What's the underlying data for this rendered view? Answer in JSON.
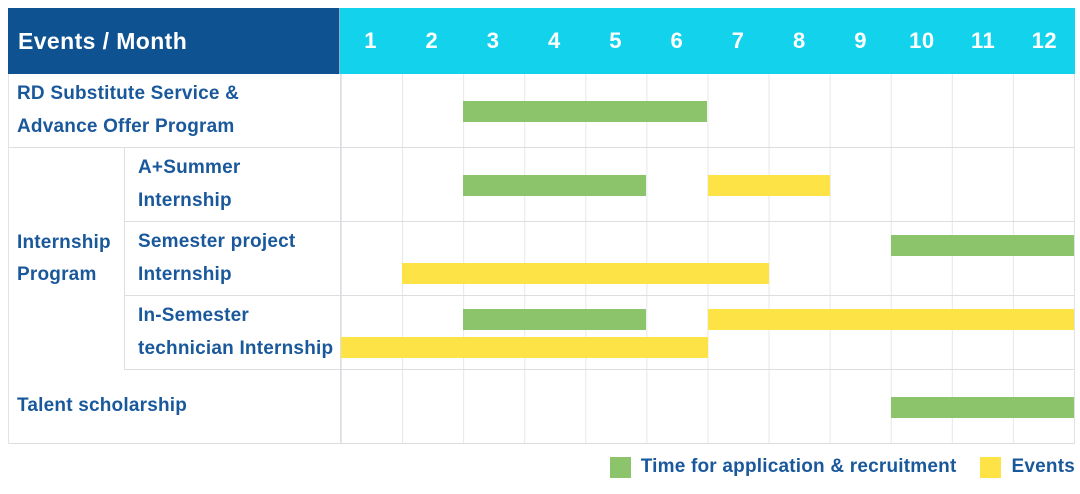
{
  "colors": {
    "header_bg": "#0E5291",
    "month_header_bg": "#13D2EC",
    "application_bar": "#8BC46B",
    "event_bar": "#FDE345",
    "label_text": "#1A589C",
    "grid_line": "#e6e6ea"
  },
  "chart_data": {
    "type": "table",
    "subtype": "gantt-schedule",
    "title": "Events / Month",
    "x_unit": "month",
    "x_range": [
      1,
      12
    ],
    "months": [
      "1",
      "2",
      "3",
      "4",
      "5",
      "6",
      "7",
      "8",
      "9",
      "10",
      "11",
      "12"
    ],
    "legend": [
      {
        "id": "application",
        "name": "Time for application & recruitment",
        "color": "#8BC46B"
      },
      {
        "id": "event",
        "name": "Events",
        "color": "#FDE345"
      }
    ],
    "sections": [
      {
        "group_lines": null,
        "rows": [
          {
            "label_lines": [
              "RD Substitute Service &",
              "Advance Offer Program"
            ],
            "tracks": [
              [
                {
                  "kind": "application",
                  "start_month": 3,
                  "end_month": 6
                }
              ]
            ]
          }
        ]
      },
      {
        "group_lines": [
          "Internship",
          "Program"
        ],
        "rows": [
          {
            "label_lines": [
              "A+Summer",
              "Internship"
            ],
            "tracks": [
              [
                {
                  "kind": "application",
                  "start_month": 3,
                  "end_month": 5
                },
                {
                  "kind": "event",
                  "start_month": 7,
                  "end_month": 8
                }
              ]
            ]
          },
          {
            "label_lines": [
              "Semester project",
              "Internship"
            ],
            "tracks": [
              [
                {
                  "kind": "application",
                  "start_month": 10,
                  "end_month": 12
                }
              ],
              [
                {
                  "kind": "event",
                  "start_month": 2,
                  "end_month": 7
                }
              ]
            ]
          },
          {
            "label_lines": [
              "In-Semester",
              "technician Internship"
            ],
            "tracks": [
              [
                {
                  "kind": "application",
                  "start_month": 3,
                  "end_month": 5
                },
                {
                  "kind": "event",
                  "start_month": 7,
                  "end_month": 12
                }
              ],
              [
                {
                  "kind": "event",
                  "start_month": 1,
                  "end_month": 6
                }
              ]
            ]
          }
        ]
      },
      {
        "group_lines": null,
        "rows": [
          {
            "label_lines": [
              "Talent scholarship"
            ],
            "tracks": [
              [
                {
                  "kind": "application",
                  "start_month": 10,
                  "end_month": 12
                }
              ]
            ]
          }
        ]
      }
    ]
  }
}
